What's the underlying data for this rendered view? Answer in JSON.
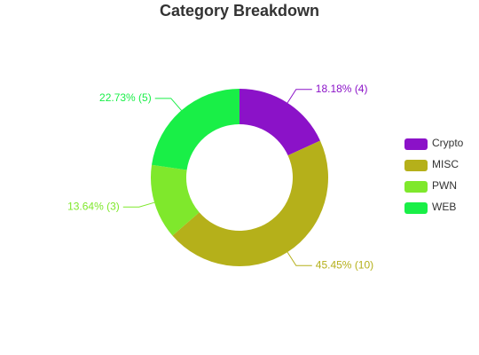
{
  "chart_data": {
    "type": "donut",
    "title": "Category Breakdown",
    "categories": [
      "Crypto",
      "MISC",
      "PWN",
      "WEB"
    ],
    "values": [
      4,
      10,
      3,
      5
    ],
    "value_labels": [
      "18.18% (4)",
      "45.45% (10)",
      "13.64% (3)",
      "22.73% (5)"
    ],
    "colors": [
      "#8b12c8",
      "#b5b01a",
      "#7fe82c",
      "#19ef47"
    ],
    "legend": "right"
  }
}
